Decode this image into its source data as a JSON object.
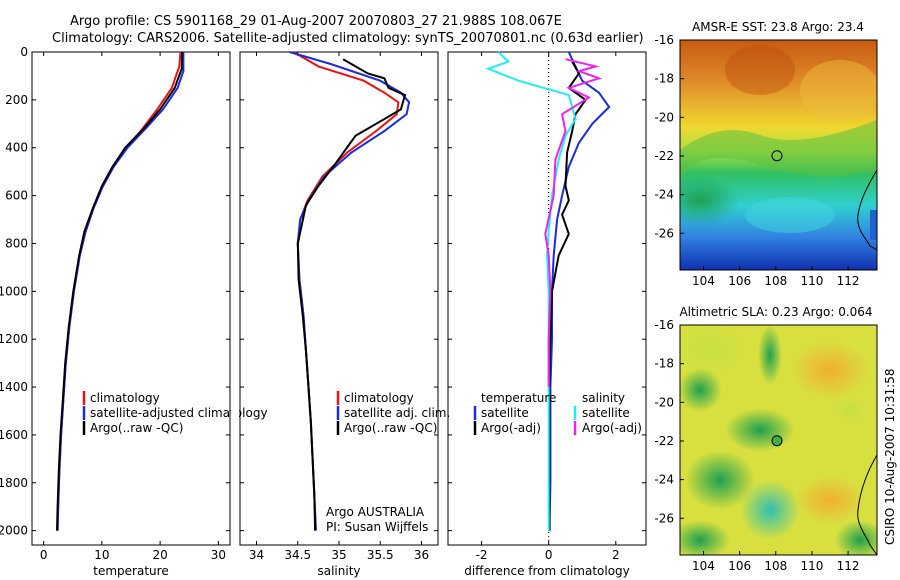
{
  "title": {
    "line1": "Argo profile: CS 5901168_29 01-Aug-2007 20070803_27 21.988S 108.067E",
    "line2": "Climatology: CARS2006. Satellite-adjusted climatology: synTS_20070801.nc (0.63d earlier)"
  },
  "stamp": "CSIRO 10-Aug-2007 10:31:58",
  "colors": {
    "red": "#ee1111",
    "blue": "#1a2be0",
    "black": "#000000",
    "cyan": "#22eeee",
    "magenta": "#ee22ee"
  },
  "chart_data": [
    {
      "id": "temperature",
      "type": "line",
      "xlabel": "temperature",
      "ylabel": "",
      "xlim": [
        -2,
        32
      ],
      "ylim": [
        2060,
        0
      ],
      "y_reversed": true,
      "xticks": [
        0,
        10,
        20,
        30
      ],
      "yticks": [
        0,
        200,
        400,
        600,
        800,
        1000,
        1200,
        1400,
        1600,
        1800,
        2000
      ],
      "legend": {
        "position": "lower-left",
        "entries": [
          "climatology",
          "satellite-adjusted climatology",
          "Argo(..raw -QC)"
        ]
      },
      "series": [
        {
          "name": "climatology",
          "color": "red",
          "x": [
            23.5,
            23.3,
            22.0,
            19.5,
            17.0,
            14.2,
            12.0,
            10.2,
            8.6,
            7.2,
            6.2,
            5.2,
            4.4,
            3.8,
            3.4,
            3.0,
            2.7,
            2.5,
            2.4
          ],
          "y": [
            0,
            60,
            150,
            240,
            320,
            400,
            480,
            560,
            650,
            750,
            850,
            1000,
            1150,
            1300,
            1450,
            1600,
            1750,
            1900,
            2000
          ]
        },
        {
          "name": "satellite-adjusted climatology",
          "color": "blue",
          "x": [
            24.0,
            24.0,
            23.0,
            20.5,
            17.5,
            14.4,
            12.0,
            10.2,
            8.6,
            7.2,
            6.2,
            5.2,
            4.4,
            3.8,
            3.4,
            3.0,
            2.7,
            2.5,
            2.4
          ],
          "y": [
            0,
            80,
            150,
            240,
            320,
            400,
            480,
            560,
            650,
            750,
            850,
            1000,
            1150,
            1300,
            1450,
            1600,
            1750,
            1900,
            2000
          ]
        },
        {
          "name": "Argo(..raw -QC)",
          "color": "black",
          "x": [
            23.8,
            23.7,
            22.5,
            20.0,
            17.2,
            14.0,
            11.8,
            10.0,
            8.5,
            7.0,
            6.1,
            5.1,
            4.3,
            3.7,
            3.3,
            2.9,
            2.6,
            2.4,
            2.3
          ],
          "y": [
            0,
            70,
            150,
            240,
            320,
            400,
            480,
            560,
            650,
            750,
            850,
            1000,
            1150,
            1300,
            1450,
            1600,
            1750,
            1900,
            2000
          ]
        }
      ]
    },
    {
      "id": "salinity",
      "type": "line",
      "xlabel": "salinity",
      "ylabel": "",
      "xlim": [
        33.8,
        36.2
      ],
      "ylim": [
        2060,
        0
      ],
      "y_reversed": true,
      "xticks": [
        34,
        34.5,
        35,
        35.5,
        36
      ],
      "legend": {
        "position": "lower-center",
        "entries": [
          "climatology",
          "satellite adj. clim.",
          "Argo(..raw -QC)"
        ]
      },
      "annotation": {
        "line1": "Argo AUSTRALIA",
        "line2": "PI: Susan Wijffels"
      },
      "series": [
        {
          "name": "climatology",
          "color": "red",
          "x": [
            34.45,
            34.75,
            35.3,
            35.55,
            35.72,
            35.7,
            35.45,
            35.1,
            34.8,
            34.62,
            34.53,
            34.5,
            34.52,
            34.57,
            34.6,
            34.63,
            34.66,
            34.68,
            34.7,
            34.72
          ],
          "y": [
            0,
            60,
            120,
            170,
            210,
            260,
            330,
            420,
            520,
            620,
            700,
            800,
            950,
            1100,
            1250,
            1400,
            1550,
            1700,
            1850,
            2000
          ]
        },
        {
          "name": "satellite adj. clim.",
          "color": "blue",
          "x": [
            34.4,
            34.9,
            35.5,
            35.75,
            35.85,
            35.82,
            35.55,
            35.15,
            34.82,
            34.63,
            34.53,
            34.5,
            34.52,
            34.57,
            34.6,
            34.63,
            34.66,
            34.68,
            34.7,
            34.72
          ],
          "y": [
            0,
            50,
            120,
            170,
            210,
            260,
            330,
            420,
            520,
            620,
            700,
            800,
            950,
            1100,
            1250,
            1400,
            1550,
            1700,
            1850,
            2000
          ]
        },
        {
          "name": "Argo(..raw -QC)",
          "color": "black",
          "x": [
            35.05,
            35.2,
            35.35,
            35.55,
            35.6,
            35.8,
            35.75,
            35.2,
            34.95,
            34.75,
            34.6,
            34.55,
            34.5,
            34.51,
            34.56,
            34.6,
            34.63,
            34.66,
            34.68,
            34.7,
            34.71
          ],
          "y": [
            30,
            60,
            90,
            110,
            150,
            180,
            240,
            350,
            470,
            560,
            640,
            720,
            800,
            950,
            1100,
            1250,
            1400,
            1550,
            1700,
            1850,
            2000
          ]
        }
      ]
    },
    {
      "id": "difference",
      "type": "line",
      "xlabel": "difference from climatology",
      "ylabel": "",
      "xlim": [
        -3,
        2.9
      ],
      "ylim": [
        2060,
        0
      ],
      "y_reversed": true,
      "xticks": [
        -2,
        0,
        2
      ],
      "zero_line": true,
      "legend": {
        "position": "lower-center",
        "header_left": "temperature",
        "header_right": "salinity",
        "entries": [
          "satellite",
          "Argo(-adj)",
          "satellite",
          "Argo(-adj)"
        ]
      },
      "series": [
        {
          "name": "satellite",
          "group": "temperature",
          "color": "blue",
          "x": [
            0.6,
            0.8,
            1.0,
            1.5,
            1.8,
            1.3,
            0.9,
            0.6,
            0.4,
            0.25,
            0.15,
            0.1,
            0.1,
            0.05,
            0.05,
            0.05,
            0.03,
            0.03
          ],
          "y": [
            0,
            60,
            120,
            170,
            230,
            300,
            380,
            480,
            600,
            700,
            850,
            1000,
            1200,
            1400,
            1600,
            1800,
            1950,
            2000
          ]
        },
        {
          "name": "Argo(-adj)",
          "group": "temperature",
          "color": "black",
          "x": [
            0.7,
            0.9,
            0.6,
            1.1,
            0.8,
            0.7,
            0.55,
            0.5,
            0.6,
            0.4,
            0.6,
            0.3,
            0.1,
            0.05,
            0.02,
            0.02,
            0.02,
            0.02
          ],
          "y": [
            40,
            90,
            150,
            200,
            260,
            330,
            420,
            560,
            620,
            680,
            760,
            850,
            1000,
            1200,
            1400,
            1600,
            1800,
            2000
          ]
        },
        {
          "name": "satellite",
          "group": "salinity",
          "color": "cyan",
          "x": [
            -1.5,
            -1.2,
            -1.8,
            -0.9,
            0.6,
            0.8,
            0.5,
            0.3,
            0.1,
            0.0,
            -0.05,
            0.0,
            0.0,
            0.0,
            0.0
          ],
          "y": [
            0,
            40,
            70,
            120,
            180,
            280,
            350,
            450,
            600,
            750,
            850,
            1000,
            1300,
            1600,
            2000
          ]
        },
        {
          "name": "Argo(-adj)",
          "group": "salinity",
          "color": "magenta",
          "x": [
            0.5,
            1.4,
            0.9,
            1.5,
            0.6,
            1.2,
            0.4,
            0.5,
            0.2,
            0.15,
            -0.1,
            0.0,
            0.05,
            0.0,
            0.0
          ],
          "y": [
            30,
            60,
            80,
            110,
            150,
            190,
            260,
            330,
            450,
            600,
            760,
            850,
            1000,
            1200,
            1400
          ]
        }
      ]
    },
    {
      "id": "sst-map",
      "type": "heatmap",
      "title": "AMSR-E SST: 23.8 Argo: 23.4",
      "xticks": [
        104,
        106,
        108,
        110,
        112
      ],
      "yticks": [
        -16,
        -18,
        -20,
        -22,
        -24,
        -26
      ],
      "xlim": [
        102.7,
        113.6
      ],
      "ylim": [
        -27.9,
        -16
      ],
      "marker": {
        "lon": 108.067,
        "lat": -21.988
      }
    },
    {
      "id": "sla-map",
      "type": "heatmap",
      "title": "Altimetric SLA: 0.23 Argo: 0.064",
      "xticks": [
        104,
        106,
        108,
        110,
        112
      ],
      "yticks": [
        -16,
        -18,
        -20,
        -22,
        -24,
        -26
      ],
      "xlim": [
        102.7,
        113.6
      ],
      "ylim": [
        -27.9,
        -16
      ],
      "marker": {
        "lon": 108.067,
        "lat": -21.988
      }
    }
  ]
}
